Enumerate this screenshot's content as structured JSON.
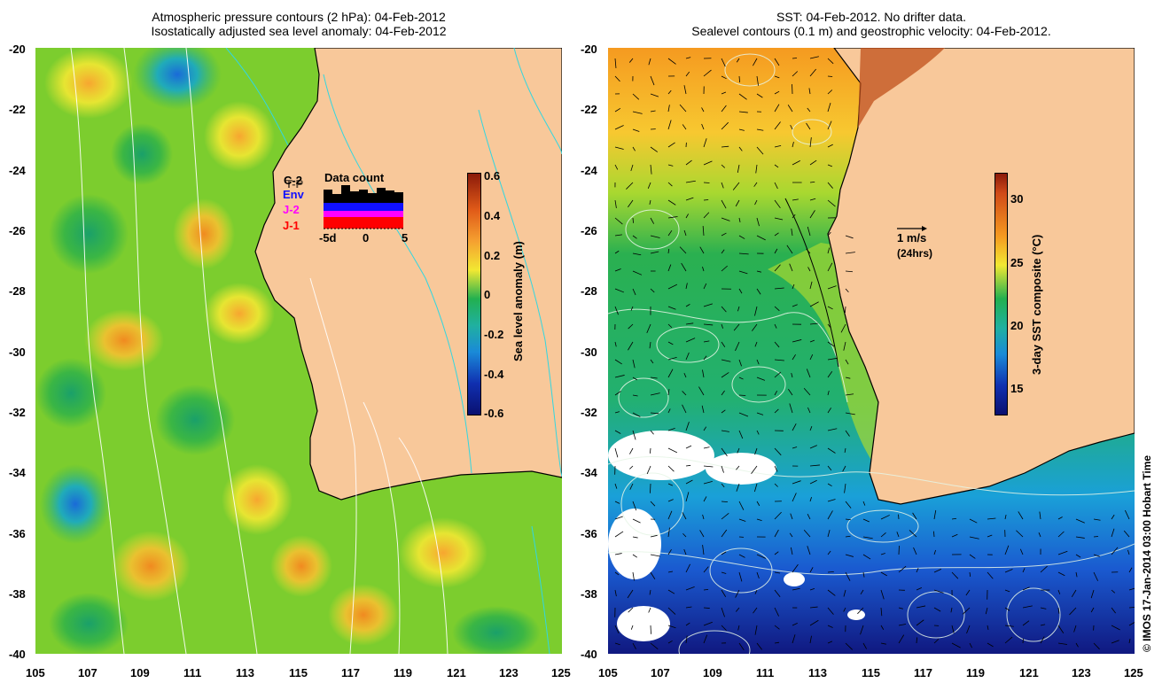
{
  "left_panel": {
    "title_line1": "Atmospheric pressure contours (2 hPa): 04-Feb-2012",
    "title_line2": "Isostatically adjusted sea level anomaly: 04-Feb-2012",
    "colorbar_label": "Sea level anomaly (m)",
    "colorbar_ticks": [
      "0.6",
      "0.4",
      "0.2",
      "0",
      "-0.2",
      "-0.4",
      "-0.6"
    ],
    "data_count": {
      "title": "Data count",
      "satellites": [
        "C-2",
        "T-P",
        "Env",
        "J-2",
        "J-1"
      ],
      "sat_colors": [
        "#000000",
        "#000000",
        "#1010ff",
        "#ff00ff",
        "#ff0000"
      ],
      "x_ticks": [
        "-5d",
        "0",
        "5"
      ]
    }
  },
  "right_panel": {
    "title_line1": "SST: 04-Feb-2012. No drifter data.",
    "title_line2": "Sealevel contours (0.1 m) and geostrophic velocity: 04-Feb-2012.",
    "colorbar_label": "3-day SST composite (°C)",
    "colorbar_ticks": [
      "30",
      "25",
      "20",
      "15"
    ],
    "scale_arrow_label": "1 m/s",
    "scale_arrow_sub": "(24hrs)"
  },
  "axes": {
    "lat_ticks": [
      "-20",
      "-22",
      "-24",
      "-26",
      "-28",
      "-30",
      "-32",
      "-34",
      "-36",
      "-38",
      "-40"
    ],
    "lon_ticks": [
      "105",
      "107",
      "109",
      "111",
      "113",
      "115",
      "117",
      "119",
      "121",
      "123",
      "125"
    ]
  },
  "credit": "© IMOS 17-Jan-2014 03:00 Hobart Time",
  "colors": {
    "land": "#f8c89a",
    "coast": "#000000",
    "isobath": "#33d6e0",
    "pressure_contour": "#ffffff"
  }
}
